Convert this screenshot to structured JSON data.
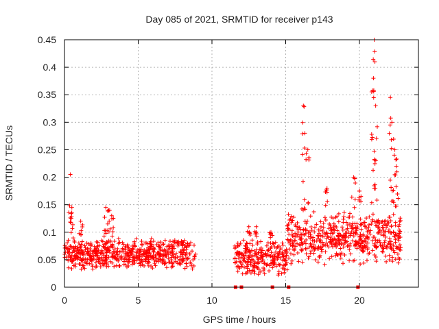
{
  "chart_data": {
    "type": "scatter",
    "title": "Day 085 of 2021, SRMTID for receiver p143",
    "xlabel": "GPS time / hours",
    "ylabel": "SRMTID / TECUs",
    "xlim": [
      0,
      24
    ],
    "ylim": [
      0,
      0.45
    ],
    "x_ticks": [
      0,
      5,
      10,
      15,
      20
    ],
    "x_tick_labels": [
      "0",
      "5",
      "10",
      "15",
      "20"
    ],
    "y_ticks": [
      0,
      0.05,
      0.1,
      0.15,
      0.2,
      0.25,
      0.3,
      0.35,
      0.4,
      0.45
    ],
    "y_tick_labels": [
      "0",
      "0.05",
      "0.1",
      "0.15",
      "0.2",
      "0.25",
      "0.3",
      "0.35",
      "0.4",
      "0.45"
    ],
    "grid": true,
    "marker": "+",
    "color": "#ff0000",
    "series": [
      {
        "name": "SRMTID",
        "segments": [
          {
            "x_range": [
              0.0,
              8.9
            ],
            "baseline": [
              0.03,
              0.09
            ],
            "peaks": [
              {
                "x": 0.4,
                "y": 0.205
              },
              {
                "x": 0.5,
                "y": 0.145
              },
              {
                "x": 1.1,
                "y": 0.12
              },
              {
                "x": 2.8,
                "y": 0.145
              },
              {
                "x": 3.0,
                "y": 0.14
              },
              {
                "x": 3.2,
                "y": 0.13
              }
            ]
          },
          {
            "x_range": [
              11.5,
              15.1
            ],
            "baseline": [
              0.02,
              0.09
            ],
            "peaks": [
              {
                "x": 12.5,
                "y": 0.11
              },
              {
                "x": 13.0,
                "y": 0.11
              },
              {
                "x": 14.0,
                "y": 0.1
              }
            ]
          },
          {
            "x_range": [
              15.1,
              22.8
            ],
            "baseline": [
              0.04,
              0.14
            ],
            "peaks": [
              {
                "x": 16.2,
                "y": 0.33
              },
              {
                "x": 16.3,
                "y": 0.28
              },
              {
                "x": 16.5,
                "y": 0.25
              },
              {
                "x": 17.8,
                "y": 0.18
              },
              {
                "x": 19.6,
                "y": 0.2
              },
              {
                "x": 20.0,
                "y": 0.175
              },
              {
                "x": 21.0,
                "y": 0.45
              },
              {
                "x": 21.05,
                "y": 0.41
              },
              {
                "x": 20.95,
                "y": 0.38
              },
              {
                "x": 21.1,
                "y": 0.33
              },
              {
                "x": 22.1,
                "y": 0.345
              },
              {
                "x": 22.2,
                "y": 0.3
              },
              {
                "x": 22.4,
                "y": 0.25
              },
              {
                "x": 22.5,
                "y": 0.22
              }
            ]
          }
        ],
        "zero_points": [
          {
            "x": 11.6,
            "y": 0
          },
          {
            "x": 12.0,
            "y": 0
          },
          {
            "x": 14.1,
            "y": 0
          },
          {
            "x": 15.2,
            "y": 0
          },
          {
            "x": 19.9,
            "y": 0
          }
        ]
      }
    ]
  }
}
